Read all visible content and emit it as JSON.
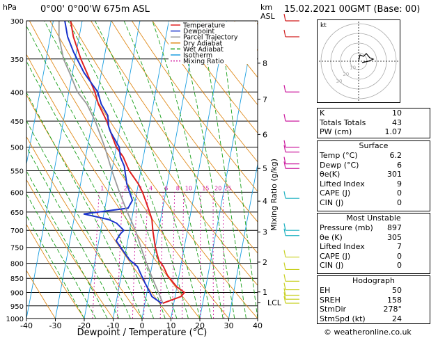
{
  "header": {
    "location": "0°00'  0°00'W  675m  ASL",
    "datetime": "15.02.2021  00GMT  (Base: 00)",
    "hpa_unit": "hPa",
    "km_unit": "km",
    "asl_unit": "ASL"
  },
  "chart_data": {
    "type": "line",
    "xlabel": "Dewpoint / Temperature (°C)",
    "ylabel_right": "Mixing Ratio (g/kg)",
    "xlim": [
      -40,
      40
    ],
    "ylim": [
      1000,
      300
    ],
    "xticks": [
      -40,
      -30,
      -20,
      -10,
      0,
      10,
      20,
      30,
      40
    ],
    "pressure_levels": [
      300,
      350,
      400,
      450,
      500,
      550,
      600,
      650,
      700,
      750,
      800,
      850,
      900,
      950,
      1000
    ],
    "km_ticks": [
      {
        "km": "1",
        "p": 898
      },
      {
        "km": "2",
        "p": 796
      },
      {
        "km": "3",
        "p": 705
      },
      {
        "km": "4",
        "p": 622
      },
      {
        "km": "5",
        "p": 545
      },
      {
        "km": "6",
        "p": 475
      },
      {
        "km": "7",
        "p": 412
      },
      {
        "km": "8",
        "p": 356
      }
    ],
    "lcl": {
      "label": "LCL",
      "p": 937
    },
    "mixing_ratio_labels": [
      "1",
      "2",
      "3",
      "4",
      "6",
      "8",
      "10",
      "15",
      "20",
      "25"
    ],
    "legend": [
      "Temperature",
      "Dewpoint",
      "Parcel Trajectory",
      "Dry Adiabat",
      "Wet Adiabat",
      "Isotherm",
      "Mixing Ratio"
    ],
    "series": [
      {
        "name": "Temperature",
        "color": "#e02020",
        "points": [
          [
            6.2,
            940
          ],
          [
            12,
            915
          ],
          [
            13,
            900
          ],
          [
            10,
            880
          ],
          [
            6,
            840
          ],
          [
            4,
            810
          ],
          [
            2,
            790
          ],
          [
            0,
            750
          ],
          [
            -2,
            700
          ],
          [
            -3,
            670
          ],
          [
            -5,
            640
          ],
          [
            -8,
            600
          ],
          [
            -10,
            580
          ],
          [
            -14,
            550
          ],
          [
            -17,
            520
          ],
          [
            -20,
            500
          ],
          [
            -22,
            480
          ],
          [
            -25,
            450
          ],
          [
            -29,
            420
          ],
          [
            -31,
            400
          ],
          [
            -35,
            370
          ],
          [
            -38,
            350
          ],
          [
            -42,
            320
          ],
          [
            -44,
            300
          ]
        ]
      },
      {
        "name": "Dewpoint",
        "color": "#1a33cc",
        "points": [
          [
            6,
            940
          ],
          [
            5,
            935
          ],
          [
            2,
            915
          ],
          [
            1,
            900
          ],
          [
            -1,
            870
          ],
          [
            -3,
            840
          ],
          [
            -5,
            810
          ],
          [
            -8,
            790
          ],
          [
            -10,
            770
          ],
          [
            -12,
            750
          ],
          [
            -14,
            730
          ],
          [
            -13,
            710
          ],
          [
            -12,
            700
          ],
          [
            -15,
            680
          ],
          [
            -18,
            670
          ],
          [
            -27,
            655
          ],
          [
            -12,
            640
          ],
          [
            -11,
            620
          ],
          [
            -14,
            580
          ],
          [
            -15,
            560
          ],
          [
            -16,
            540
          ],
          [
            -18,
            520
          ],
          [
            -19,
            500
          ],
          [
            -23,
            470
          ],
          [
            -24,
            460
          ],
          [
            -25,
            440
          ],
          [
            -28,
            420
          ],
          [
            -30,
            400
          ],
          [
            -36,
            370
          ],
          [
            -41,
            340
          ],
          [
            -44,
            320
          ],
          [
            -46,
            300
          ]
        ]
      },
      {
        "name": "Parcel Trajectory",
        "color": "#999999",
        "points": [
          [
            6.2,
            940
          ],
          [
            4,
            900
          ],
          [
            1,
            850
          ],
          [
            -2,
            800
          ],
          [
            -5,
            750
          ],
          [
            -8,
            700
          ],
          [
            -12,
            650
          ],
          [
            -16,
            600
          ],
          [
            -20,
            550
          ],
          [
            -24,
            500
          ],
          [
            -29,
            450
          ],
          [
            -33,
            420
          ],
          [
            -37,
            400
          ],
          [
            -41,
            370
          ],
          [
            -44,
            350
          ],
          [
            -47,
            320
          ],
          [
            -48,
            300
          ]
        ]
      }
    ],
    "hodograph": {
      "label": "kt",
      "ring_labels": [
        "10",
        "20",
        "30"
      ]
    }
  },
  "indices": {
    "rows": [
      {
        "label": "K",
        "value": "10"
      },
      {
        "label": "Totals Totals",
        "value": "43"
      },
      {
        "label": "PW (cm)",
        "value": "1.07"
      }
    ]
  },
  "surface": {
    "title": "Surface",
    "rows": [
      {
        "label": "Temp (°C)",
        "value": "6.2"
      },
      {
        "label": "Dewp (°C)",
        "value": "6"
      },
      {
        "label": "θe(K)",
        "value": "301"
      },
      {
        "label": "Lifted Index",
        "value": "9"
      },
      {
        "label": "CAPE (J)",
        "value": "0"
      },
      {
        "label": "CIN (J)",
        "value": "0"
      }
    ]
  },
  "unstable": {
    "title": "Most Unstable",
    "rows": [
      {
        "label": "Pressure (mb)",
        "value": "897"
      },
      {
        "label": "θe (K)",
        "value": "305"
      },
      {
        "label": "Lifted Index",
        "value": "7"
      },
      {
        "label": "CAPE (J)",
        "value": "0"
      },
      {
        "label": "CIN (J)",
        "value": "0"
      }
    ]
  },
  "hodograph_box": {
    "title": "Hodograph",
    "rows": [
      {
        "label": "EH",
        "value": "50"
      },
      {
        "label": "SREH",
        "value": "158"
      },
      {
        "label": "StmDir",
        "value": "278°"
      },
      {
        "label": "StmSpd (kt)",
        "value": "24"
      }
    ]
  },
  "footer": {
    "copyright": "© weatheronline.co.uk"
  },
  "colors": {
    "temperature": "#e02020",
    "dewpoint": "#1a33cc",
    "parcel": "#999999",
    "dry_adiabat": "#e08a1a",
    "wet_adiabat": "#1aa01a",
    "isotherm": "#1a9ee0",
    "mixing_ratio": "#d01a9e",
    "wind_magenta": "#cc1a9e",
    "wind_cyan": "#1ab0c0",
    "wind_yellow": "#c8d020",
    "wind_red": "#d01a1a"
  }
}
